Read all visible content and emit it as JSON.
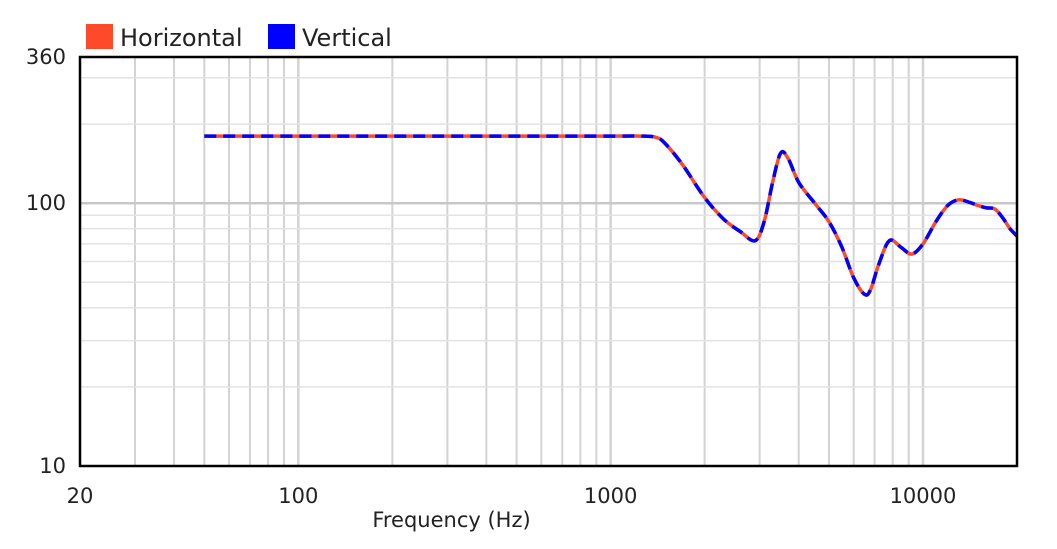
{
  "chart_data": {
    "type": "line",
    "title": "",
    "xlabel": "Frequency (Hz)",
    "ylabel": "",
    "x_scale": "log",
    "y_scale": "log",
    "xlim": [
      20,
      20000
    ],
    "ylim": [
      10,
      360
    ],
    "grid": true,
    "legend_position": "top-left",
    "x_ticks": [
      {
        "value": 20,
        "label": "20"
      },
      {
        "value": 100,
        "label": "100"
      },
      {
        "value": 1000,
        "label": "1000"
      },
      {
        "value": 10000,
        "label": "10000"
      }
    ],
    "y_ticks": [
      {
        "value": 10,
        "label": "10"
      },
      {
        "value": 100,
        "label": "100"
      },
      {
        "value": 360,
        "label": "360"
      }
    ],
    "x": [
      50,
      100,
      200,
      500,
      1000,
      1250,
      1400,
      1500,
      1700,
      2000,
      2300,
      2600,
      2900,
      3100,
      3300,
      3500,
      3700,
      4000,
      4500,
      5000,
      5500,
      6000,
      6500,
      6800,
      7200,
      7800,
      8500,
      9200,
      10000,
      11000,
      12000,
      13000,
      14000,
      15000,
      16000,
      17000,
      18000,
      19000,
      20000
    ],
    "series": [
      {
        "name": "Horizontal",
        "color": "#ff4a2a",
        "style": "solid",
        "values": [
          180,
          180,
          180,
          180,
          180,
          180,
          178,
          168,
          140,
          105,
          87,
          78,
          72,
          85,
          120,
          155,
          148,
          120,
          100,
          85,
          68,
          52,
          45,
          47,
          58,
          72,
          68,
          64,
          70,
          85,
          98,
          103,
          101,
          98,
          96,
          95,
          88,
          80,
          75
        ]
      },
      {
        "name": "Vertical",
        "color": "#0000ff",
        "style": "dashed",
        "values": [
          180,
          180,
          180,
          180,
          180,
          180,
          178,
          168,
          140,
          105,
          87,
          78,
          72,
          85,
          120,
          155,
          148,
          120,
          100,
          85,
          68,
          52,
          45,
          47,
          58,
          72,
          68,
          64,
          70,
          85,
          98,
          103,
          101,
          98,
          96,
          95,
          88,
          80,
          75
        ]
      }
    ]
  }
}
